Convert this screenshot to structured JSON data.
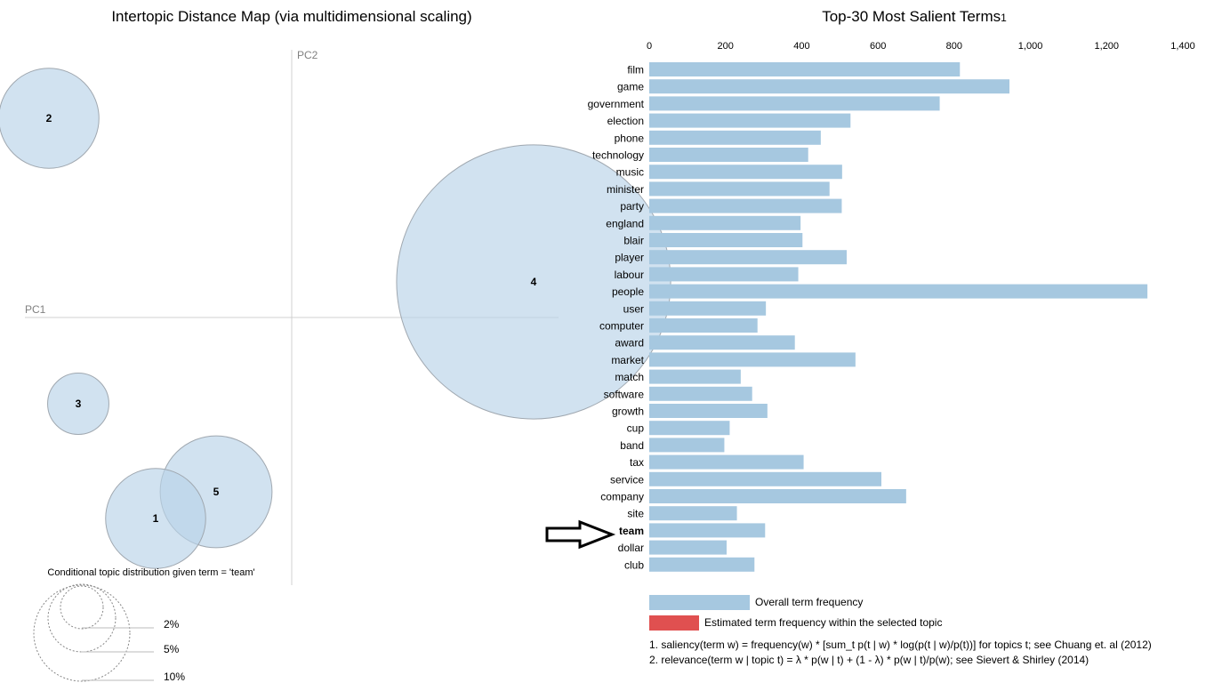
{
  "left_panel": {
    "title": "Intertopic Distance Map (via multidimensional scaling)",
    "axis_x_label": "PC1",
    "axis_y_label": "PC2",
    "conditional_caption": "Conditional topic distribution given term = 'team'",
    "size_legend": [
      "2%",
      "5%",
      "10%"
    ]
  },
  "right_panel": {
    "title": "Top-30 Most Salient Terms",
    "title_footnote": "1",
    "legend_overall": "Overall term frequency",
    "legend_selected": "Estimated term frequency within the selected topic",
    "footnote_1": "1. saliency(term w) = frequency(w) * [sum_t p(t | w) * log(p(t | w)/p(t))] for topics t; see Chuang et. al (2012)",
    "footnote_2": "2. relevance(term w | topic t) = λ * p(w | t) + (1 - λ) * p(w | t)/p(w); see Sievert & Shirley (2014)",
    "highlighted_term": "team"
  },
  "colors": {
    "bar": "#a6c8e0",
    "bubble_fill": "#b8d3e8",
    "bubble_stroke": "#a0a8b0",
    "selected": "#e05050",
    "axis_line": "#d0d0d0"
  },
  "chart_data": [
    {
      "type": "scatter",
      "title": "Intertopic Distance Map (via multidimensional scaling)",
      "xlabel": "PC1",
      "ylabel": "PC2",
      "topics": [
        {
          "label": "1",
          "x": -0.153,
          "y": -0.226,
          "size_pct": 8
        },
        {
          "label": "2",
          "x": -0.273,
          "y": 0.224,
          "size_pct": 8
        },
        {
          "label": "3",
          "x": -0.24,
          "y": -0.097,
          "size_pct": 3
        },
        {
          "label": "4",
          "x": 0.272,
          "y": 0.04,
          "size_pct": 60
        },
        {
          "label": "5",
          "x": -0.085,
          "y": -0.196,
          "size_pct": 10
        }
      ]
    },
    {
      "type": "bar",
      "title": "Top-30 Most Salient Terms",
      "xlim": [
        0,
        1400
      ],
      "xticks": [
        0,
        200,
        400,
        600,
        800,
        1000,
        1200,
        1400
      ],
      "xtick_labels": [
        "0",
        "200",
        "400",
        "600",
        "800",
        "1,000",
        "1,200",
        "1,400"
      ],
      "categories": [
        "film",
        "game",
        "government",
        "election",
        "phone",
        "technology",
        "music",
        "minister",
        "party",
        "england",
        "blair",
        "player",
        "labour",
        "people",
        "user",
        "computer",
        "award",
        "market",
        "match",
        "software",
        "growth",
        "cup",
        "band",
        "tax",
        "service",
        "company",
        "site",
        "team",
        "dollar",
        "club"
      ],
      "values": [
        815,
        945,
        762,
        528,
        450,
        417,
        506,
        473,
        505,
        397,
        402,
        518,
        391,
        1307,
        306,
        284,
        382,
        541,
        240,
        270,
        310,
        211,
        197,
        405,
        609,
        674,
        230,
        304,
        203,
        276
      ]
    }
  ]
}
